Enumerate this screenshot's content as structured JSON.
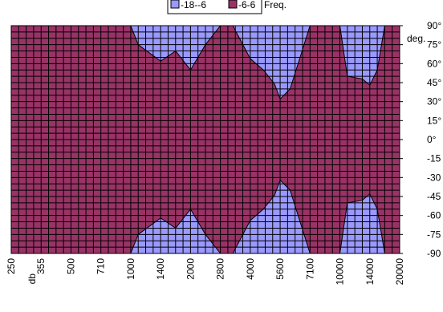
{
  "chart_data": {
    "type": "area",
    "subtype": "filled-contour",
    "legend": {
      "placement": "top-center",
      "entries": [
        {
          "label": "-18--6",
          "color": "#9999ff"
        },
        {
          "label": "-6-6",
          "color": "#993366"
        }
      ],
      "extra_label": "Freq."
    },
    "y_axis": {
      "unit_label": "deg.",
      "tick_labels": [
        "90°",
        "75°",
        "60°",
        "45°",
        "30°",
        "15°",
        "0°",
        "-15",
        "-30",
        "-45",
        "-60",
        "-75",
        "-90"
      ],
      "range": [
        -90,
        90
      ]
    },
    "x_axis": {
      "unit_label": "db",
      "tick_labels": [
        "250",
        "355",
        "500",
        "710",
        "1000",
        "1400",
        "2000",
        "2800",
        "4000",
        "5600",
        "7100",
        "10000",
        "14000",
        "20000"
      ]
    },
    "grid": true,
    "series": [
      {
        "name": "-18--6",
        "color": "#9999ff"
      },
      {
        "name": "-6-6",
        "color": "#993366"
      }
    ],
    "contour_regions": [
      {
        "series": "-18--6",
        "edge": "top",
        "boundary_deg": [
          [
            1000,
            90
          ],
          [
            1100,
            75
          ],
          [
            1400,
            62
          ],
          [
            1700,
            70
          ],
          [
            2000,
            55
          ],
          [
            2400,
            75
          ],
          [
            2800,
            90
          ]
        ]
      },
      {
        "series": "-18--6",
        "edge": "top",
        "boundary_deg": [
          [
            3300,
            90
          ],
          [
            4000,
            64
          ],
          [
            4700,
            55
          ],
          [
            5300,
            44
          ],
          [
            5600,
            32
          ],
          [
            6100,
            40
          ],
          [
            6700,
            70
          ],
          [
            7100,
            90
          ]
        ]
      },
      {
        "series": "-18--6",
        "edge": "top",
        "boundary_deg": [
          [
            10000,
            90
          ],
          [
            11000,
            50
          ],
          [
            13000,
            48
          ],
          [
            14000,
            43
          ],
          [
            15500,
            55
          ],
          [
            17000,
            90
          ]
        ]
      },
      {
        "series": "-18--6",
        "edge": "bottom",
        "boundary_deg": [
          [
            1000,
            -90
          ],
          [
            1100,
            -75
          ],
          [
            1400,
            -62
          ],
          [
            1700,
            -70
          ],
          [
            2000,
            -55
          ],
          [
            2400,
            -75
          ],
          [
            2800,
            -90
          ]
        ]
      },
      {
        "series": "-18--6",
        "edge": "bottom",
        "boundary_deg": [
          [
            3300,
            -90
          ],
          [
            4000,
            -64
          ],
          [
            4700,
            -55
          ],
          [
            5300,
            -44
          ],
          [
            5600,
            -32
          ],
          [
            6100,
            -40
          ],
          [
            6700,
            -70
          ],
          [
            7100,
            -90
          ]
        ]
      },
      {
        "series": "-18--6",
        "edge": "bottom",
        "boundary_deg": [
          [
            10000,
            -90
          ],
          [
            11000,
            -50
          ],
          [
            13000,
            -48
          ],
          [
            14000,
            -43
          ],
          [
            15500,
            -55
          ],
          [
            17000,
            -90
          ]
        ]
      }
    ]
  }
}
